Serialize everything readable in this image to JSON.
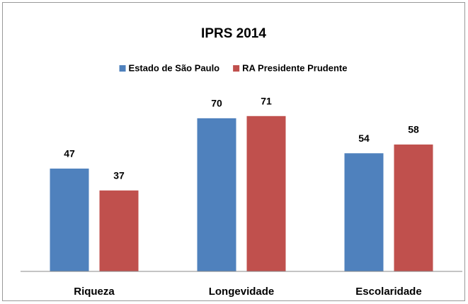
{
  "chart_data": {
    "type": "bar",
    "title": "IPRS 2014",
    "categories": [
      "Riqueza",
      "Longevidade",
      "Escolaridade"
    ],
    "series": [
      {
        "name": "Estado de São Paulo",
        "color": "#4f81bd",
        "values": [
          47,
          70,
          54
        ]
      },
      {
        "name": "RA Presidente Prudente",
        "color": "#c0504d",
        "values": [
          37,
          71,
          58
        ]
      }
    ],
    "ylim": [
      0,
      80
    ],
    "legend": "top"
  }
}
